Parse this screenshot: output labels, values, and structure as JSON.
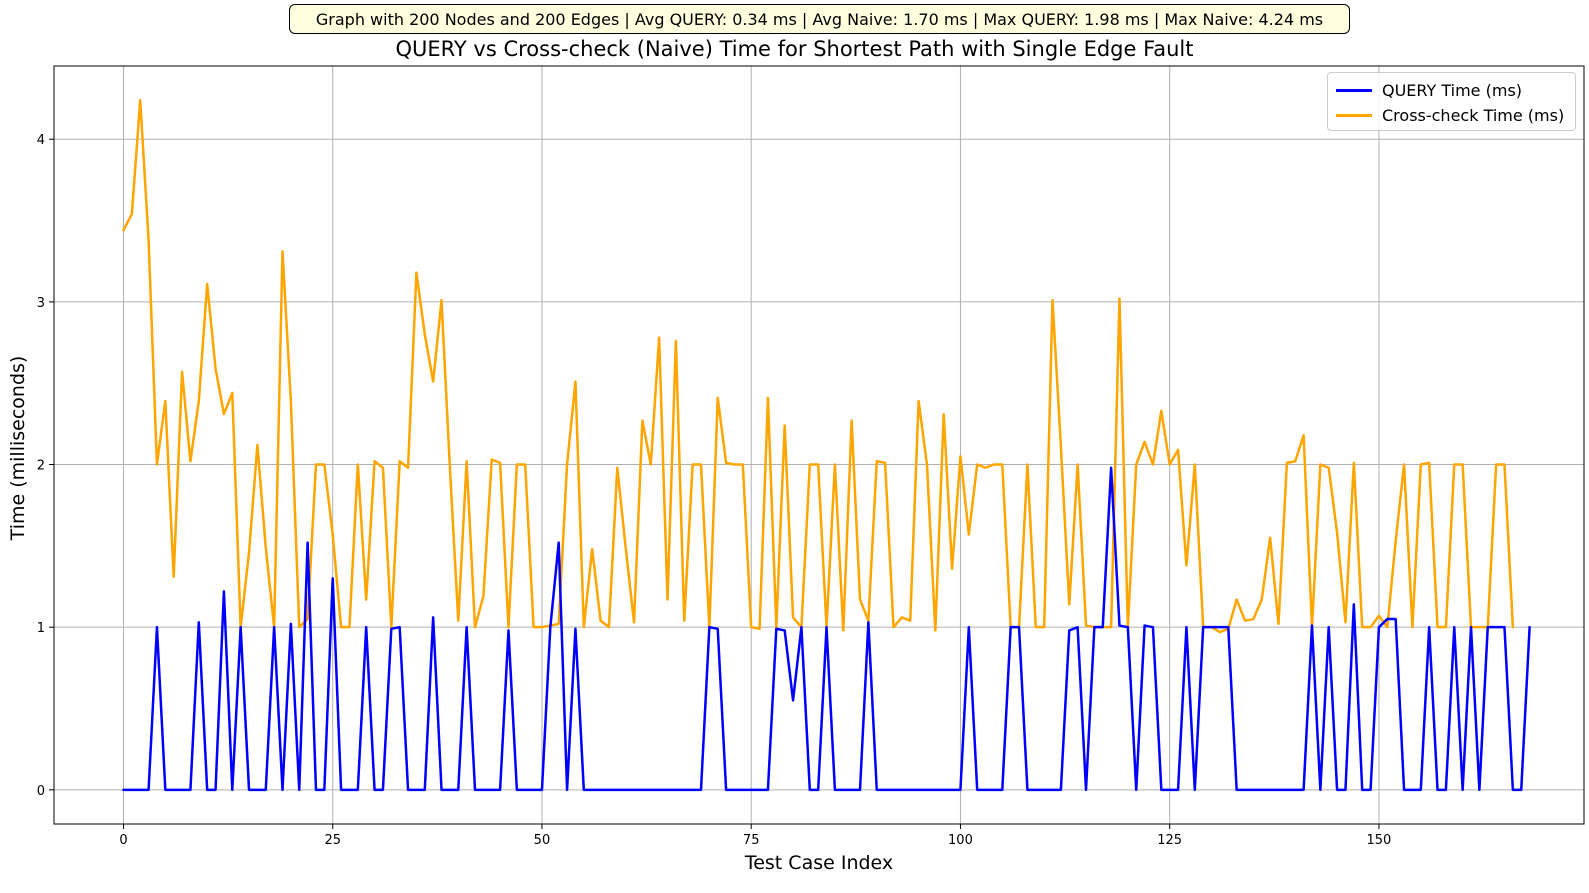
{
  "header": {
    "stats": "Graph with 200 Nodes and 200 Edges | Avg QUERY: 0.34 ms | Avg Naive: 1.70 ms | Max QUERY: 1.98 ms | Max Naive: 4.24 ms"
  },
  "colors": {
    "query": "#0000ff",
    "crosscheck": "#ffa500",
    "grid": "#b0b0b0",
    "stats_bg": "#ffffe0"
  },
  "chart_data": {
    "type": "line",
    "title": "QUERY vs Cross-check (Naive) Time for Shortest Path with Single Edge Fault",
    "xlabel": "Test Case Index",
    "ylabel": "Time (milliseconds)",
    "xlim": [
      -8.3,
      174.5
    ],
    "ylim": [
      -0.21,
      4.45
    ],
    "xticks": [
      "0",
      "25",
      "50",
      "75",
      "100",
      "125",
      "150"
    ],
    "yticks": [
      "0",
      "1",
      "2",
      "3",
      "4"
    ],
    "grid": true,
    "legend_position": "top-right",
    "series": [
      {
        "name": "QUERY Time (ms)",
        "values": [
          0,
          0,
          0,
          0,
          1,
          0,
          0,
          0,
          0,
          1.03,
          0,
          0,
          1.22,
          0,
          1,
          0,
          0,
          0,
          1,
          0,
          1.02,
          0,
          1.52,
          0,
          0,
          1.3,
          0,
          0,
          0,
          1,
          0,
          0,
          0.99,
          1,
          0,
          0,
          0,
          1.06,
          0,
          0,
          0,
          1,
          0,
          0,
          0,
          0,
          0.98,
          0,
          0,
          0,
          0,
          1,
          1.52,
          0,
          0.99,
          0,
          0,
          0,
          0,
          0,
          0,
          0,
          0,
          0,
          0,
          0,
          0,
          0,
          0,
          0,
          1,
          0.99,
          0,
          0,
          0,
          0,
          0,
          0,
          0.99,
          0.98,
          0.55,
          1,
          0,
          0,
          1,
          0,
          0,
          0,
          0,
          1.03,
          0,
          0,
          0,
          0,
          0,
          0,
          0,
          0,
          0,
          0,
          0,
          1,
          0,
          0,
          0,
          0,
          1,
          1,
          0,
          0,
          0,
          0,
          0,
          0.98,
          1,
          0,
          1,
          1,
          1.98,
          1.01,
          1,
          0,
          1.01,
          1,
          0,
          0,
          0,
          1,
          0,
          1,
          1,
          1,
          1,
          0,
          0,
          0,
          0,
          0,
          0,
          0,
          0,
          0,
          1.01,
          0,
          1,
          0,
          0,
          1.14,
          0,
          0,
          1,
          1.05,
          1.05,
          0,
          0,
          0,
          1,
          0,
          0,
          1,
          0,
          1,
          0,
          1,
          1,
          1,
          0,
          0,
          1
        ]
      },
      {
        "name": "Cross-check Time (ms)",
        "values": [
          3.44,
          3.54,
          4.24,
          3.38,
          2,
          2.39,
          1.31,
          2.57,
          2.02,
          2.39,
          3.11,
          2.59,
          2.31,
          2.44,
          1,
          1.46,
          2.12,
          1.49,
          1,
          3.31,
          2.39,
          1,
          1.05,
          2,
          2,
          1.57,
          1,
          1,
          2,
          1.17,
          2.02,
          1.98,
          1,
          2.02,
          1.98,
          3.18,
          2.8,
          2.51,
          3.01,
          1.98,
          1.04,
          2.02,
          1,
          1.19,
          2.03,
          2.01,
          1,
          2,
          2,
          1,
          1,
          1.01,
          1.02,
          2,
          2.51,
          1,
          1.48,
          1.04,
          1,
          1.98,
          1.49,
          1.03,
          2.27,
          2,
          2.78,
          1.17,
          2.76,
          1.04,
          2,
          2,
          1,
          2.41,
          2.01,
          2,
          2,
          1,
          0.99,
          2.41,
          1,
          2.24,
          1.06,
          1,
          2,
          2,
          1,
          2,
          0.98,
          2.27,
          1.17,
          1.04,
          2.02,
          2.01,
          1,
          1.06,
          1.04,
          2.39,
          2,
          0.98,
          2.31,
          1.36,
          2.05,
          1.57,
          2,
          1.98,
          2,
          2,
          1,
          1,
          2,
          1,
          1,
          3.01,
          2.11,
          1.14,
          2,
          1.01,
          1,
          1,
          1,
          3.02,
          1,
          2,
          2.14,
          2,
          2.33,
          2,
          2.09,
          1.38,
          2,
          1,
          1,
          0.97,
          0.99,
          1.17,
          1.04,
          1.05,
          1.17,
          1.55,
          1.02,
          2.01,
          2.02,
          2.18,
          1,
          2,
          1.98,
          1.58,
          1.03,
          2.01,
          1,
          1,
          1.07,
          1,
          1.53,
          2,
          1,
          2,
          2.01,
          1,
          1,
          2,
          2,
          1,
          1,
          1,
          2,
          2,
          1
        ]
      }
    ]
  }
}
